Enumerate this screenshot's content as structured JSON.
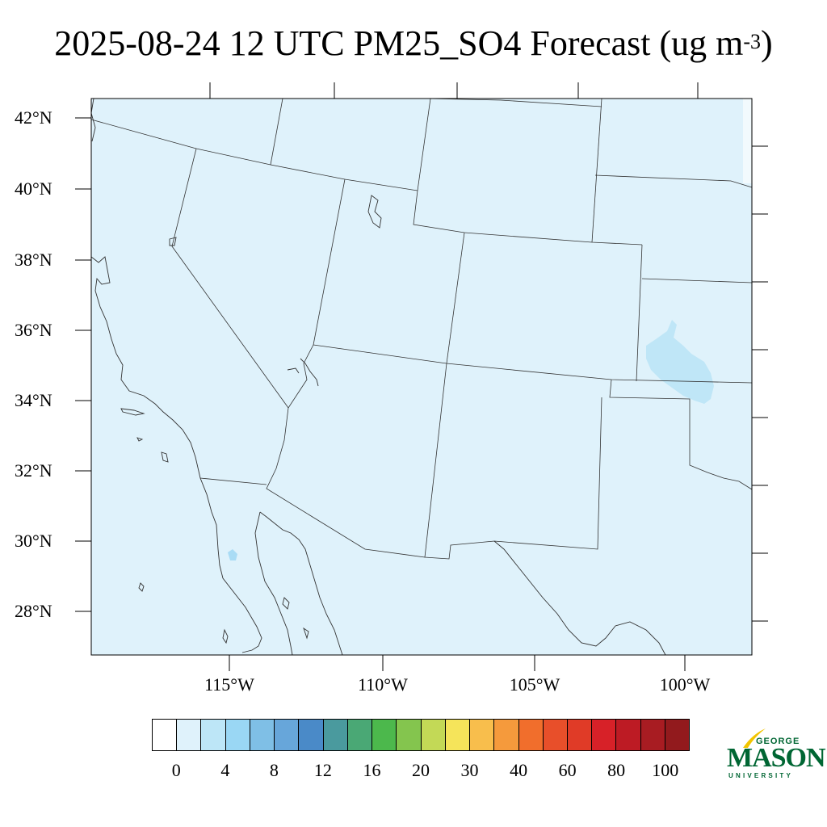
{
  "title": {
    "text": "2025-08-24 12 UTC PM25_SO4 Forecast (ug m",
    "superscript": "-3",
    "closing": ")"
  },
  "map": {
    "lat_labels": [
      "42°N",
      "40°N",
      "38°N",
      "36°N",
      "34°N",
      "32°N",
      "30°N",
      "28°N"
    ],
    "lon_labels": [
      "115°W",
      "110°W",
      "105°W",
      "100°W"
    ],
    "background_color": "#dff2fb",
    "line_color": "#333333"
  },
  "colorbar": {
    "colors": [
      "#ffffff",
      "#dff2fb",
      "#bde6f7",
      "#9ad7f4",
      "#7fbfe6",
      "#67a6da",
      "#4a8ac8",
      "#4a9a9e",
      "#4aa875",
      "#4cb84c",
      "#84c54e",
      "#c3d956",
      "#f5e45a",
      "#f8be4c",
      "#f59a3c",
      "#f16e2c",
      "#e84f2a",
      "#e03b27",
      "#d72128",
      "#bd1b24",
      "#a81c22",
      "#921a1d"
    ],
    "tick_labels": [
      "0",
      "4",
      "8",
      "12",
      "16",
      "20",
      "30",
      "40",
      "60",
      "80",
      "100"
    ]
  },
  "logo": {
    "line1": "GEORGE",
    "line2": "MASON",
    "line3": "UNIVERSITY",
    "color": "#006633",
    "accent": "#f2c500"
  }
}
